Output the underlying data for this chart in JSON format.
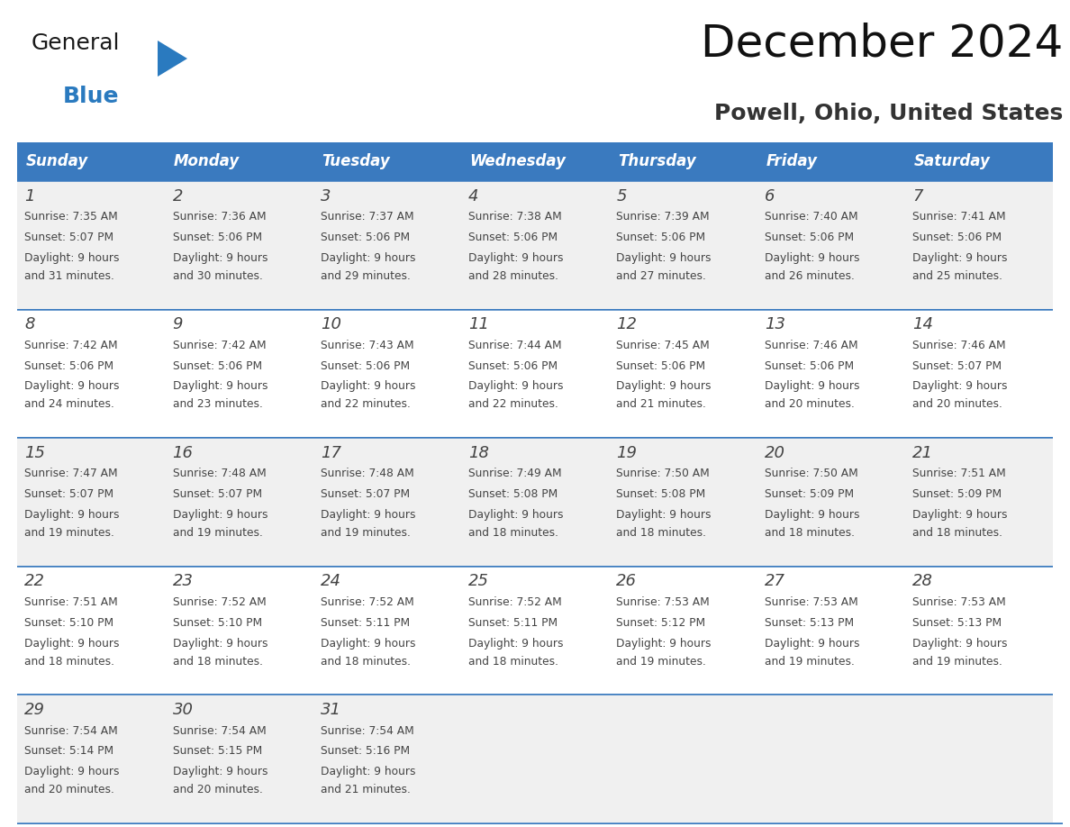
{
  "title": "December 2024",
  "subtitle": "Powell, Ohio, United States",
  "header_bg": "#3a7abf",
  "header_text_color": "#ffffff",
  "header_days": [
    "Sunday",
    "Monday",
    "Tuesday",
    "Wednesday",
    "Thursday",
    "Friday",
    "Saturday"
  ],
  "row_bg_odd": "#f0f0f0",
  "row_bg_even": "#ffffff",
  "cell_border_color": "#3a7abf",
  "text_color": "#444444",
  "day_num_color": "#444444",
  "logo_general_color": "#1a1a1a",
  "logo_blue_color": "#2a7abf",
  "weeks": [
    [
      {
        "day": 1,
        "sunrise": "7:35 AM",
        "sunset": "5:07 PM",
        "daylight_hours": 9,
        "daylight_min": 31
      },
      {
        "day": 2,
        "sunrise": "7:36 AM",
        "sunset": "5:06 PM",
        "daylight_hours": 9,
        "daylight_min": 30
      },
      {
        "day": 3,
        "sunrise": "7:37 AM",
        "sunset": "5:06 PM",
        "daylight_hours": 9,
        "daylight_min": 29
      },
      {
        "day": 4,
        "sunrise": "7:38 AM",
        "sunset": "5:06 PM",
        "daylight_hours": 9,
        "daylight_min": 28
      },
      {
        "day": 5,
        "sunrise": "7:39 AM",
        "sunset": "5:06 PM",
        "daylight_hours": 9,
        "daylight_min": 27
      },
      {
        "day": 6,
        "sunrise": "7:40 AM",
        "sunset": "5:06 PM",
        "daylight_hours": 9,
        "daylight_min": 26
      },
      {
        "day": 7,
        "sunrise": "7:41 AM",
        "sunset": "5:06 PM",
        "daylight_hours": 9,
        "daylight_min": 25
      }
    ],
    [
      {
        "day": 8,
        "sunrise": "7:42 AM",
        "sunset": "5:06 PM",
        "daylight_hours": 9,
        "daylight_min": 24
      },
      {
        "day": 9,
        "sunrise": "7:42 AM",
        "sunset": "5:06 PM",
        "daylight_hours": 9,
        "daylight_min": 23
      },
      {
        "day": 10,
        "sunrise": "7:43 AM",
        "sunset": "5:06 PM",
        "daylight_hours": 9,
        "daylight_min": 22
      },
      {
        "day": 11,
        "sunrise": "7:44 AM",
        "sunset": "5:06 PM",
        "daylight_hours": 9,
        "daylight_min": 22
      },
      {
        "day": 12,
        "sunrise": "7:45 AM",
        "sunset": "5:06 PM",
        "daylight_hours": 9,
        "daylight_min": 21
      },
      {
        "day": 13,
        "sunrise": "7:46 AM",
        "sunset": "5:06 PM",
        "daylight_hours": 9,
        "daylight_min": 20
      },
      {
        "day": 14,
        "sunrise": "7:46 AM",
        "sunset": "5:07 PM",
        "daylight_hours": 9,
        "daylight_min": 20
      }
    ],
    [
      {
        "day": 15,
        "sunrise": "7:47 AM",
        "sunset": "5:07 PM",
        "daylight_hours": 9,
        "daylight_min": 19
      },
      {
        "day": 16,
        "sunrise": "7:48 AM",
        "sunset": "5:07 PM",
        "daylight_hours": 9,
        "daylight_min": 19
      },
      {
        "day": 17,
        "sunrise": "7:48 AM",
        "sunset": "5:07 PM",
        "daylight_hours": 9,
        "daylight_min": 19
      },
      {
        "day": 18,
        "sunrise": "7:49 AM",
        "sunset": "5:08 PM",
        "daylight_hours": 9,
        "daylight_min": 18
      },
      {
        "day": 19,
        "sunrise": "7:50 AM",
        "sunset": "5:08 PM",
        "daylight_hours": 9,
        "daylight_min": 18
      },
      {
        "day": 20,
        "sunrise": "7:50 AM",
        "sunset": "5:09 PM",
        "daylight_hours": 9,
        "daylight_min": 18
      },
      {
        "day": 21,
        "sunrise": "7:51 AM",
        "sunset": "5:09 PM",
        "daylight_hours": 9,
        "daylight_min": 18
      }
    ],
    [
      {
        "day": 22,
        "sunrise": "7:51 AM",
        "sunset": "5:10 PM",
        "daylight_hours": 9,
        "daylight_min": 18
      },
      {
        "day": 23,
        "sunrise": "7:52 AM",
        "sunset": "5:10 PM",
        "daylight_hours": 9,
        "daylight_min": 18
      },
      {
        "day": 24,
        "sunrise": "7:52 AM",
        "sunset": "5:11 PM",
        "daylight_hours": 9,
        "daylight_min": 18
      },
      {
        "day": 25,
        "sunrise": "7:52 AM",
        "sunset": "5:11 PM",
        "daylight_hours": 9,
        "daylight_min": 18
      },
      {
        "day": 26,
        "sunrise": "7:53 AM",
        "sunset": "5:12 PM",
        "daylight_hours": 9,
        "daylight_min": 19
      },
      {
        "day": 27,
        "sunrise": "7:53 AM",
        "sunset": "5:13 PM",
        "daylight_hours": 9,
        "daylight_min": 19
      },
      {
        "day": 28,
        "sunrise": "7:53 AM",
        "sunset": "5:13 PM",
        "daylight_hours": 9,
        "daylight_min": 19
      }
    ],
    [
      {
        "day": 29,
        "sunrise": "7:54 AM",
        "sunset": "5:14 PM",
        "daylight_hours": 9,
        "daylight_min": 20
      },
      {
        "day": 30,
        "sunrise": "7:54 AM",
        "sunset": "5:15 PM",
        "daylight_hours": 9,
        "daylight_min": 20
      },
      {
        "day": 31,
        "sunrise": "7:54 AM",
        "sunset": "5:16 PM",
        "daylight_hours": 9,
        "daylight_min": 21
      },
      null,
      null,
      null,
      null
    ]
  ]
}
